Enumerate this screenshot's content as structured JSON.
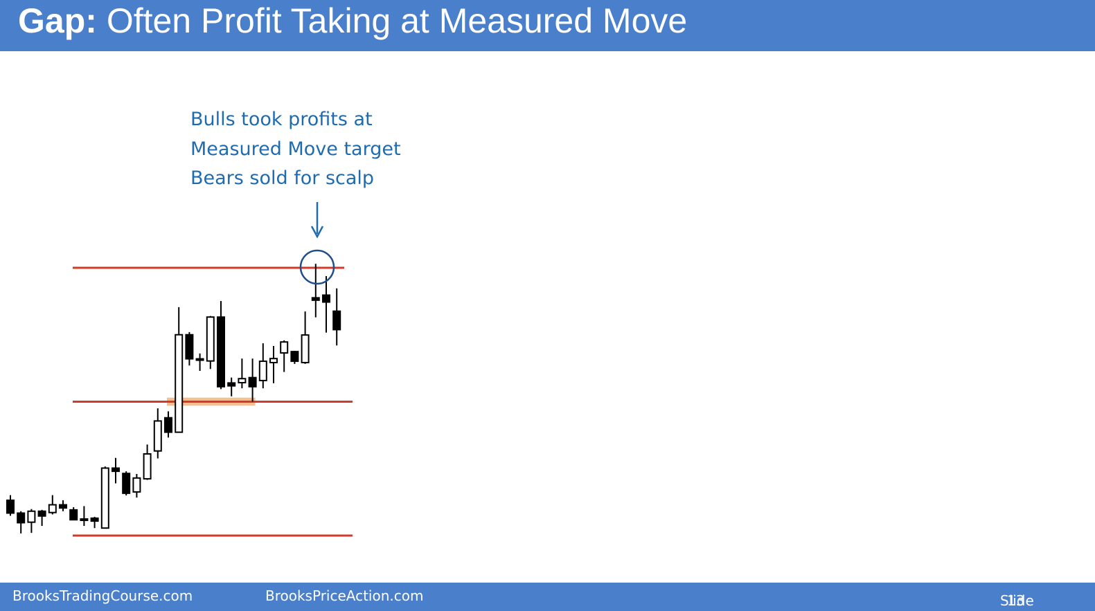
{
  "header": {
    "title_bold": "Gap:",
    "title_rest": "Often Profit Taking at Measured Move"
  },
  "annotation": {
    "lines": [
      "Bulls took profits at",
      "Measured Move target",
      "Bears sold for scalp"
    ]
  },
  "footer": {
    "left": "BrooksTradingCourse.com",
    "middle": "BrooksPriceAction.com",
    "slide_label": "Slide",
    "slide_number": "13"
  },
  "colors": {
    "bar_blue": "#4a7fcb",
    "annotation_blue": "#1f6bb0",
    "line_red": "#d23a2a",
    "zone_orange": "#f5b27a"
  },
  "chart_data": {
    "type": "candlestick",
    "ylim": [
      0,
      100
    ],
    "levels": [
      {
        "name": "measured-move-target",
        "value": 100
      },
      {
        "name": "gap-line",
        "value": 50
      },
      {
        "name": "base-line",
        "value": 0
      }
    ],
    "gap_zone": {
      "low": 48.5,
      "high": 51.5,
      "from_bar": 15,
      "to_bar": 23
    },
    "candles": [
      {
        "o": 13.2,
        "h": 15.1,
        "l": 7.4,
        "c": 8.4
      },
      {
        "o": 8.4,
        "h": 9.1,
        "l": 0.8,
        "c": 4.8
      },
      {
        "o": 5.0,
        "h": 9.9,
        "l": 1.0,
        "c": 9.1
      },
      {
        "o": 9.1,
        "h": 9.6,
        "l": 3.6,
        "c": 7.3
      },
      {
        "o": 8.6,
        "h": 15.1,
        "l": 7.9,
        "c": 11.5
      },
      {
        "o": 11.5,
        "h": 13.2,
        "l": 9.1,
        "c": 10.3
      },
      {
        "o": 9.6,
        "h": 10.6,
        "l": 6.5,
        "c": 5.9
      },
      {
        "o": 6.2,
        "h": 11.0,
        "l": 3.6,
        "c": 6.2
      },
      {
        "o": 6.5,
        "h": 7.0,
        "l": 2.8,
        "c": 5.4
      },
      {
        "o": 2.8,
        "h": 25.8,
        "l": 2.8,
        "c": 25.2
      },
      {
        "o": 25.2,
        "h": 29.0,
        "l": 19.5,
        "c": 24.0
      },
      {
        "o": 23.2,
        "h": 24.0,
        "l": 15.0,
        "c": 15.8
      },
      {
        "o": 16.3,
        "h": 23.0,
        "l": 14.2,
        "c": 21.5
      },
      {
        "o": 21.2,
        "h": 34.0,
        "l": 20.8,
        "c": 30.5
      },
      {
        "o": 31.6,
        "h": 47.5,
        "l": 28.8,
        "c": 42.8
      },
      {
        "o": 44.0,
        "h": 46.4,
        "l": 36.6,
        "c": 38.6
      },
      {
        "o": 38.6,
        "h": 85.3,
        "l": 38.6,
        "c": 75.0
      },
      {
        "o": 75.0,
        "h": 76.0,
        "l": 63.5,
        "c": 66.0
      },
      {
        "o": 66.0,
        "h": 68.0,
        "l": 61.5,
        "c": 66.0
      },
      {
        "o": 65.2,
        "h": 82.0,
        "l": 62.2,
        "c": 81.6
      },
      {
        "o": 81.6,
        "h": 87.6,
        "l": 54.7,
        "c": 55.6
      },
      {
        "o": 57.0,
        "h": 59.0,
        "l": 52.0,
        "c": 55.9
      },
      {
        "o": 57.1,
        "h": 66.1,
        "l": 55.0,
        "c": 58.6
      },
      {
        "o": 59.0,
        "h": 66.1,
        "l": 50.0,
        "c": 55.6
      },
      {
        "o": 57.9,
        "h": 71.8,
        "l": 55.0,
        "c": 65.1
      },
      {
        "o": 64.6,
        "h": 70.8,
        "l": 56.9,
        "c": 66.1
      },
      {
        "o": 68.2,
        "h": 72.9,
        "l": 61.1,
        "c": 72.3
      },
      {
        "o": 68.7,
        "h": 69.0,
        "l": 64.1,
        "c": 65.1
      },
      {
        "o": 64.6,
        "h": 83.7,
        "l": 64.1,
        "c": 74.9
      },
      {
        "o": 88.8,
        "h": 101.5,
        "l": 81.5,
        "c": 87.9
      },
      {
        "o": 89.8,
        "h": 96.9,
        "l": 75.8,
        "c": 87.2
      },
      {
        "o": 83.8,
        "h": 92.3,
        "l": 71.0,
        "c": 76.9
      }
    ]
  }
}
